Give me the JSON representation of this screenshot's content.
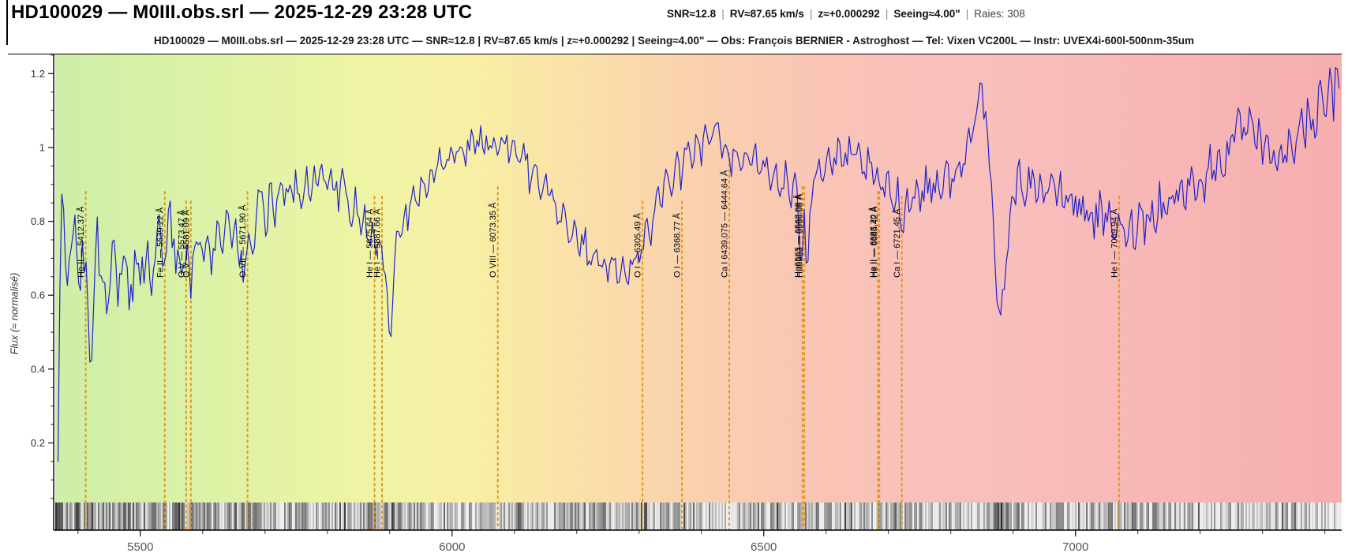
{
  "header": {
    "title": "HD100029 — M0III.obs.srl — 2025-12-29 23:28 UTC",
    "stats": [
      {
        "label": "SNR≈12.8",
        "muted": false
      },
      {
        "label": "RV≈87.65 km/s",
        "muted": false
      },
      {
        "label": "z≈+0.000292",
        "muted": false
      },
      {
        "label": "Seeing≈4.00\"",
        "muted": false
      },
      {
        "label": "Raies: 308",
        "muted": true
      }
    ],
    "stats_separator": "|",
    "subtitle": "HD100029 — M0III.obs.srl — 2025-12-29 23:28 UTC — SNR≈12.8 | RV≈87.65 km/s | z≈+0.000292 | Seeing≈4.00\" — Obs: François BERNIER - Astroghost — Tel: Vixen VC200L — Instr: UVEX4i-600l-500nm-35um"
  },
  "chart_data": {
    "type": "line",
    "title": "",
    "xlabel": "",
    "ylabel": "Flux (≈ normalisé)",
    "xlim": [
      5361,
      7427
    ],
    "ylim": [
      -0.036,
      1.254
    ],
    "x_ticks": [
      5500,
      6000,
      6500,
      7000
    ],
    "x_minor_step": 100,
    "y_ticks": [
      0.2,
      0.4,
      0.6,
      0.8,
      1,
      1.2
    ],
    "y_minor_step": 0.05,
    "grid": false,
    "legend": "none",
    "line_color": "#2121cc",
    "marker_line_color": "#e0981e",
    "background_rainbow": [
      {
        "wl": 5370,
        "color": "#cfeea8"
      },
      {
        "wl": 5600,
        "color": "#dcf2a6"
      },
      {
        "wl": 5850,
        "color": "#eef4a4"
      },
      {
        "wl": 6020,
        "color": "#f8f0a4"
      },
      {
        "wl": 6180,
        "color": "#fae2a8"
      },
      {
        "wl": 6400,
        "color": "#fad0ae"
      },
      {
        "wl": 6600,
        "color": "#f9c4b6"
      },
      {
        "wl": 6900,
        "color": "#f8bebc"
      },
      {
        "wl": 7427,
        "color": "#f6aeae"
      }
    ],
    "spectral_lines": [
      {
        "label": "He II — 5412.37 Å",
        "wl": 5412.37
      },
      {
        "label": "Fe II — 5539.22 Å",
        "wl": 5539.22
      },
      {
        "label": "O V — 5573.47 Å",
        "wl": 5573.47
      },
      {
        "label": "O V — 5581.09 Å",
        "wl": 5581.09
      },
      {
        "label": "O VII — 5671.90 Å",
        "wl": 5671.9
      },
      {
        "label": "He I — 5875.64 Å",
        "wl": 5875.64
      },
      {
        "label": "He I — 5887.66 Å",
        "wl": 5887.66
      },
      {
        "label": "O VIII — 6073.35 Å",
        "wl": 6073.35
      },
      {
        "label": "O I — 6305.49 Å",
        "wl": 6305.49
      },
      {
        "label": "O I — 6368.77 Å",
        "wl": 6368.77
      },
      {
        "label": "Ca I 6439.075 — 6444.64 Å",
        "wl": 6444.64
      },
      {
        "label": "Hα6563 — 6562.08 Å",
        "wl": 6562.08
      },
      {
        "label": "Hα6563 — 6565.08 Å",
        "wl": 6565.08
      },
      {
        "label": "He II — 6683.20 Å",
        "wl": 6683.2
      },
      {
        "label": "He II — 6685.42 Å",
        "wl": 6685.42
      },
      {
        "label": "Ca I — 6721.45 Å",
        "wl": 6721.45
      },
      {
        "label": "He I — 7069.94 Å",
        "wl": 7069.94
      }
    ],
    "noise_profile": [
      [
        5368,
        0.065
      ],
      [
        5620,
        0.05
      ],
      [
        5900,
        0.035
      ],
      [
        6100,
        0.04
      ],
      [
        6520,
        0.035
      ],
      [
        7150,
        0.05
      ],
      [
        7428,
        0.06
      ]
    ],
    "points": [
      [
        5368,
        0.2
      ],
      [
        5371,
        0.6
      ],
      [
        5374,
        0.84
      ],
      [
        5380,
        0.7
      ],
      [
        5385,
        0.64
      ],
      [
        5390,
        0.76
      ],
      [
        5396,
        0.8
      ],
      [
        5402,
        0.62
      ],
      [
        5408,
        0.7
      ],
      [
        5413,
        0.66
      ],
      [
        5418,
        0.5
      ],
      [
        5421,
        0.43
      ],
      [
        5426,
        0.62
      ],
      [
        5431,
        0.78
      ],
      [
        5437,
        0.64
      ],
      [
        5443,
        0.6
      ],
      [
        5449,
        0.55
      ],
      [
        5455,
        0.7
      ],
      [
        5459,
        0.77
      ],
      [
        5464,
        0.62
      ],
      [
        5470,
        0.68
      ],
      [
        5476,
        0.73
      ],
      [
        5482,
        0.58
      ],
      [
        5488,
        0.62
      ],
      [
        5494,
        0.72
      ],
      [
        5500,
        0.63
      ],
      [
        5506,
        0.68
      ],
      [
        5512,
        0.75
      ],
      [
        5518,
        0.64
      ],
      [
        5524,
        0.72
      ],
      [
        5530,
        0.85
      ],
      [
        5536,
        0.72
      ],
      [
        5541,
        0.68
      ],
      [
        5546,
        0.86
      ],
      [
        5552,
        0.74
      ],
      [
        5557,
        0.65
      ],
      [
        5562,
        0.74
      ],
      [
        5568,
        0.64
      ],
      [
        5574,
        0.73
      ],
      [
        5580,
        0.63
      ],
      [
        5586,
        0.7
      ],
      [
        5592,
        0.77
      ],
      [
        5598,
        0.66
      ],
      [
        5605,
        0.77
      ],
      [
        5612,
        0.7
      ],
      [
        5619,
        0.68
      ],
      [
        5626,
        0.81
      ],
      [
        5633,
        0.72
      ],
      [
        5640,
        0.83
      ],
      [
        5647,
        0.71
      ],
      [
        5654,
        0.78
      ],
      [
        5661,
        0.68
      ],
      [
        5668,
        0.66
      ],
      [
        5674,
        0.78
      ],
      [
        5681,
        0.72
      ],
      [
        5688,
        0.84
      ],
      [
        5695,
        0.88
      ],
      [
        5702,
        0.78
      ],
      [
        5709,
        0.9
      ],
      [
        5716,
        0.82
      ],
      [
        5723,
        0.92
      ],
      [
        5730,
        0.85
      ],
      [
        5737,
        0.92
      ],
      [
        5744,
        0.84
      ],
      [
        5751,
        0.92
      ],
      [
        5758,
        0.86
      ],
      [
        5765,
        0.93
      ],
      [
        5772,
        0.88
      ],
      [
        5779,
        0.94
      ],
      [
        5786,
        0.9
      ],
      [
        5791,
        0.99
      ],
      [
        5797,
        0.91
      ],
      [
        5804,
        0.94
      ],
      [
        5811,
        0.88
      ],
      [
        5818,
        0.86
      ],
      [
        5825,
        0.92
      ],
      [
        5832,
        0.84
      ],
      [
        5839,
        0.8
      ],
      [
        5846,
        0.88
      ],
      [
        5853,
        0.78
      ],
      [
        5859,
        0.83
      ],
      [
        5865,
        0.74
      ],
      [
        5871,
        0.78
      ],
      [
        5877,
        0.7
      ],
      [
        5883,
        0.74
      ],
      [
        5889,
        0.68
      ],
      [
        5894,
        0.62
      ],
      [
        5899,
        0.52
      ],
      [
        5902,
        0.48
      ],
      [
        5906,
        0.66
      ],
      [
        5911,
        0.78
      ],
      [
        5917,
        0.74
      ],
      [
        5923,
        0.84
      ],
      [
        5929,
        0.8
      ],
      [
        5936,
        0.88
      ],
      [
        5943,
        0.83
      ],
      [
        5950,
        0.91
      ],
      [
        5958,
        0.87
      ],
      [
        5966,
        0.95
      ],
      [
        5974,
        0.91
      ],
      [
        5982,
        0.99
      ],
      [
        5990,
        0.95
      ],
      [
        5998,
        1.01
      ],
      [
        6006,
        0.97
      ],
      [
        6014,
        1.02
      ],
      [
        6022,
        0.98
      ],
      [
        6030,
        1.03
      ],
      [
        6038,
        1.0
      ],
      [
        6046,
        1.06
      ],
      [
        6054,
        1.0
      ],
      [
        6062,
        1.04
      ],
      [
        6070,
        0.98
      ],
      [
        6076,
        1.03
      ],
      [
        6084,
        1.05
      ],
      [
        6092,
        0.97
      ],
      [
        6100,
        1.02
      ],
      [
        6108,
        0.94
      ],
      [
        6116,
        1.0
      ],
      [
        6124,
        0.91
      ],
      [
        6132,
        0.97
      ],
      [
        6140,
        0.87
      ],
      [
        6148,
        0.93
      ],
      [
        6156,
        0.83
      ],
      [
        6164,
        0.89
      ],
      [
        6172,
        0.79
      ],
      [
        6180,
        0.85
      ],
      [
        6188,
        0.75
      ],
      [
        6196,
        0.81
      ],
      [
        6204,
        0.71
      ],
      [
        6212,
        0.77
      ],
      [
        6220,
        0.68
      ],
      [
        6228,
        0.73
      ],
      [
        6236,
        0.65
      ],
      [
        6244,
        0.71
      ],
      [
        6252,
        0.64
      ],
      [
        6260,
        0.69
      ],
      [
        6268,
        0.63
      ],
      [
        6276,
        0.7
      ],
      [
        6284,
        0.65
      ],
      [
        6292,
        0.73
      ],
      [
        6300,
        0.68
      ],
      [
        6306,
        0.72
      ],
      [
        6313,
        0.8
      ],
      [
        6320,
        0.75
      ],
      [
        6328,
        0.88
      ],
      [
        6336,
        0.82
      ],
      [
        6344,
        0.94
      ],
      [
        6352,
        0.89
      ],
      [
        6360,
        0.99
      ],
      [
        6368,
        0.91
      ],
      [
        6376,
        1.01
      ],
      [
        6384,
        0.95
      ],
      [
        6392,
        1.04
      ],
      [
        6400,
        0.97
      ],
      [
        6408,
        1.06
      ],
      [
        6416,
        0.99
      ],
      [
        6424,
        1.08
      ],
      [
        6432,
        0.97
      ],
      [
        6440,
        1.04
      ],
      [
        6447,
        0.92
      ],
      [
        6455,
        1.01
      ],
      [
        6463,
        0.94
      ],
      [
        6471,
        1.02
      ],
      [
        6479,
        0.95
      ],
      [
        6487,
        1.01
      ],
      [
        6495,
        0.9
      ],
      [
        6503,
        0.97
      ],
      [
        6511,
        0.88
      ],
      [
        6519,
        0.96
      ],
      [
        6527,
        0.86
      ],
      [
        6535,
        0.94
      ],
      [
        6543,
        0.84
      ],
      [
        6551,
        0.91
      ],
      [
        6557,
        0.78
      ],
      [
        6561,
        0.66
      ],
      [
        6565,
        0.86
      ],
      [
        6569,
        0.64
      ],
      [
        6574,
        0.84
      ],
      [
        6580,
        0.92
      ],
      [
        6588,
        0.97
      ],
      [
        6596,
        0.91
      ],
      [
        6604,
        0.99
      ],
      [
        6612,
        0.93
      ],
      [
        6620,
        1.0
      ],
      [
        6628,
        0.94
      ],
      [
        6636,
        1.0
      ],
      [
        6644,
        0.94
      ],
      [
        6652,
        0.99
      ],
      [
        6660,
        0.92
      ],
      [
        6668,
        0.97
      ],
      [
        6676,
        0.89
      ],
      [
        6684,
        0.93
      ],
      [
        6692,
        0.86
      ],
      [
        6700,
        0.91
      ],
      [
        6708,
        0.84
      ],
      [
        6715,
        0.89
      ],
      [
        6722,
        0.78
      ],
      [
        6729,
        0.88
      ],
      [
        6737,
        0.83
      ],
      [
        6745,
        0.91
      ],
      [
        6753,
        0.85
      ],
      [
        6761,
        0.92
      ],
      [
        6769,
        0.87
      ],
      [
        6777,
        0.93
      ],
      [
        6785,
        0.88
      ],
      [
        6793,
        0.94
      ],
      [
        6801,
        0.89
      ],
      [
        6809,
        0.95
      ],
      [
        6817,
        0.92
      ],
      [
        6825,
        1.0
      ],
      [
        6833,
        1.06
      ],
      [
        6841,
        1.12
      ],
      [
        6848,
        1.17
      ],
      [
        6854,
        1.1
      ],
      [
        6860,
        0.98
      ],
      [
        6866,
        0.84
      ],
      [
        6872,
        0.66
      ],
      [
        6878,
        0.5
      ],
      [
        6884,
        0.6
      ],
      [
        6890,
        0.74
      ],
      [
        6896,
        0.82
      ],
      [
        6903,
        0.88
      ],
      [
        6911,
        0.93
      ],
      [
        6919,
        0.88
      ],
      [
        6927,
        0.94
      ],
      [
        6935,
        0.87
      ],
      [
        6943,
        0.92
      ],
      [
        6951,
        0.86
      ],
      [
        6959,
        0.92
      ],
      [
        6967,
        0.85
      ],
      [
        6975,
        0.9
      ],
      [
        6983,
        0.84
      ],
      [
        6991,
        0.89
      ],
      [
        6999,
        0.82
      ],
      [
        7007,
        0.87
      ],
      [
        7015,
        0.8
      ],
      [
        7023,
        0.85
      ],
      [
        7031,
        0.79
      ],
      [
        7039,
        0.84
      ],
      [
        7047,
        0.77
      ],
      [
        7055,
        0.83
      ],
      [
        7063,
        0.76
      ],
      [
        7071,
        0.79
      ],
      [
        7079,
        0.74
      ],
      [
        7087,
        0.81
      ],
      [
        7095,
        0.76
      ],
      [
        7103,
        0.84
      ],
      [
        7111,
        0.78
      ],
      [
        7119,
        0.85
      ],
      [
        7127,
        0.8
      ],
      [
        7135,
        0.87
      ],
      [
        7143,
        0.81
      ],
      [
        7151,
        0.89
      ],
      [
        7159,
        0.83
      ],
      [
        7167,
        0.91
      ],
      [
        7175,
        0.85
      ],
      [
        7183,
        0.93
      ],
      [
        7191,
        0.87
      ],
      [
        7199,
        0.95
      ],
      [
        7207,
        0.89
      ],
      [
        7215,
        0.97
      ],
      [
        7223,
        0.91
      ],
      [
        7231,
        1.0
      ],
      [
        7239,
        0.94
      ],
      [
        7247,
        1.04
      ],
      [
        7255,
        0.97
      ],
      [
        7263,
        1.09
      ],
      [
        7271,
        1.01
      ],
      [
        7279,
        1.07
      ],
      [
        7287,
        0.99
      ],
      [
        7295,
        1.04
      ],
      [
        7303,
        0.96
      ],
      [
        7311,
        1.02
      ],
      [
        7319,
        0.93
      ],
      [
        7327,
        1.0
      ],
      [
        7335,
        0.92
      ],
      [
        7343,
        1.05
      ],
      [
        7351,
        0.98
      ],
      [
        7359,
        1.09
      ],
      [
        7367,
        1.02
      ],
      [
        7375,
        1.12
      ],
      [
        7383,
        1.04
      ],
      [
        7391,
        1.15
      ],
      [
        7399,
        1.07
      ],
      [
        7407,
        1.18
      ],
      [
        7413,
        1.1
      ],
      [
        7419,
        1.2
      ],
      [
        7424,
        1.12
      ]
    ]
  }
}
